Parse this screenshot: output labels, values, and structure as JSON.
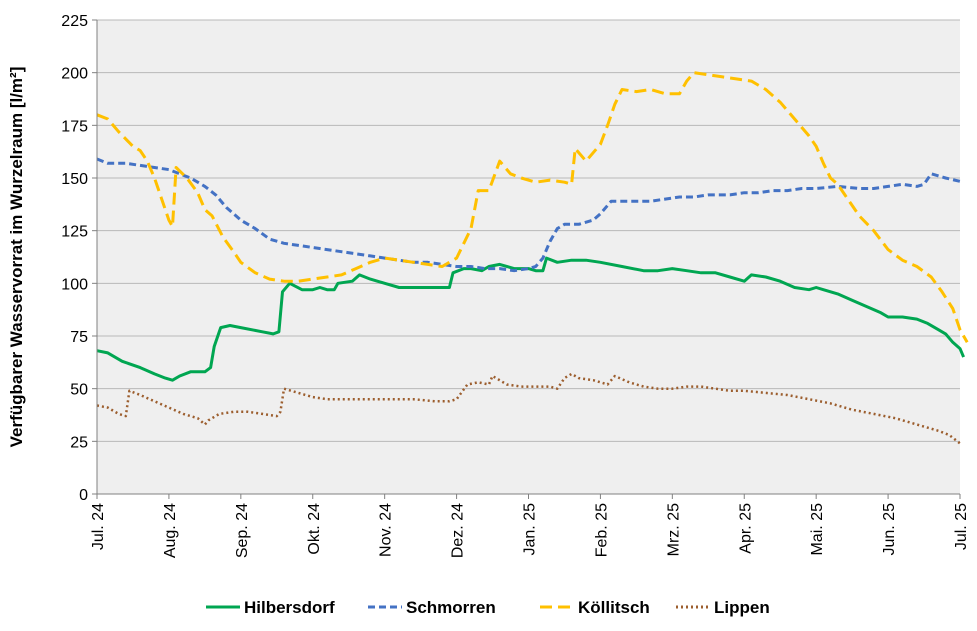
{
  "chart_data": {
    "type": "line",
    "ylabel": "Verfügbarer Wasservorrat im Wurzelraum [l/m²]",
    "ylim": [
      0,
      225
    ],
    "yticks": [
      0,
      25,
      50,
      75,
      100,
      125,
      150,
      175,
      200,
      225
    ],
    "xlim": [
      0,
      12
    ],
    "x_tick_labels": [
      "Jul. 24",
      "Aug. 24",
      "Sep. 24",
      "Okt. 24",
      "Nov. 24",
      "Dez. 24",
      "Jan. 25",
      "Feb. 25",
      "Mrz. 25",
      "Apr. 25",
      "Mai. 25",
      "Jun. 25",
      "Jul. 25"
    ],
    "grid": "horizontal",
    "legend": "bottom",
    "series": [
      {
        "name": "Hilbersdorf",
        "color": "#00a651",
        "dash": "solid",
        "points": [
          [
            0,
            68
          ],
          [
            0.15,
            67
          ],
          [
            0.35,
            63
          ],
          [
            0.6,
            60
          ],
          [
            0.8,
            57
          ],
          [
            0.95,
            55
          ],
          [
            1.05,
            54
          ],
          [
            1.15,
            56
          ],
          [
            1.3,
            58
          ],
          [
            1.5,
            58
          ],
          [
            1.58,
            60
          ],
          [
            1.63,
            70
          ],
          [
            1.72,
            79
          ],
          [
            1.85,
            80
          ],
          [
            2.0,
            79
          ],
          [
            2.3,
            77
          ],
          [
            2.45,
            76
          ],
          [
            2.53,
            77
          ],
          [
            2.58,
            96
          ],
          [
            2.68,
            100
          ],
          [
            2.85,
            97
          ],
          [
            3.0,
            97
          ],
          [
            3.1,
            98
          ],
          [
            3.2,
            97
          ],
          [
            3.3,
            97
          ],
          [
            3.35,
            100
          ],
          [
            3.55,
            101
          ],
          [
            3.65,
            104
          ],
          [
            3.8,
            102
          ],
          [
            4.0,
            100
          ],
          [
            4.2,
            98
          ],
          [
            4.4,
            98
          ],
          [
            4.6,
            98
          ],
          [
            4.8,
            98
          ],
          [
            4.9,
            98
          ],
          [
            4.95,
            105
          ],
          [
            5.1,
            107
          ],
          [
            5.2,
            107
          ],
          [
            5.35,
            106
          ],
          [
            5.45,
            108
          ],
          [
            5.6,
            109
          ],
          [
            5.8,
            107
          ],
          [
            6.0,
            107
          ],
          [
            6.1,
            106
          ],
          [
            6.2,
            106
          ],
          [
            6.25,
            112
          ],
          [
            6.4,
            110
          ],
          [
            6.6,
            111
          ],
          [
            6.8,
            111
          ],
          [
            7.0,
            110
          ],
          [
            7.3,
            108
          ],
          [
            7.6,
            106
          ],
          [
            7.8,
            106
          ],
          [
            8.0,
            107
          ],
          [
            8.2,
            106
          ],
          [
            8.4,
            105
          ],
          [
            8.6,
            105
          ],
          [
            8.8,
            103
          ],
          [
            9.0,
            101
          ],
          [
            9.1,
            104
          ],
          [
            9.3,
            103
          ],
          [
            9.5,
            101
          ],
          [
            9.7,
            98
          ],
          [
            9.9,
            97
          ],
          [
            10.0,
            98
          ],
          [
            10.1,
            97
          ],
          [
            10.3,
            95
          ],
          [
            10.5,
            92
          ],
          [
            10.7,
            89
          ],
          [
            10.9,
            86
          ],
          [
            11.0,
            84
          ],
          [
            11.2,
            84
          ],
          [
            11.4,
            83
          ],
          [
            11.55,
            81
          ],
          [
            11.7,
            78
          ],
          [
            11.8,
            76
          ],
          [
            11.9,
            72
          ],
          [
            12.0,
            69
          ],
          [
            12.05,
            65
          ]
        ]
      },
      {
        "name": "Schmorren",
        "color": "#4472c4",
        "dash": "dashed",
        "points": [
          [
            0,
            159
          ],
          [
            0.15,
            157
          ],
          [
            0.4,
            157
          ],
          [
            0.6,
            156
          ],
          [
            0.8,
            155
          ],
          [
            1.0,
            154
          ],
          [
            1.3,
            150
          ],
          [
            1.5,
            146
          ],
          [
            1.65,
            142
          ],
          [
            1.8,
            136
          ],
          [
            2.0,
            130
          ],
          [
            2.2,
            126
          ],
          [
            2.4,
            121
          ],
          [
            2.6,
            119
          ],
          [
            2.8,
            118
          ],
          [
            3.0,
            117
          ],
          [
            3.2,
            116
          ],
          [
            3.4,
            115
          ],
          [
            3.6,
            114
          ],
          [
            3.8,
            113
          ],
          [
            4.0,
            112
          ],
          [
            4.2,
            111
          ],
          [
            4.4,
            110
          ],
          [
            4.6,
            110
          ],
          [
            4.8,
            109
          ],
          [
            5.0,
            108
          ],
          [
            5.2,
            108
          ],
          [
            5.4,
            107
          ],
          [
            5.6,
            107
          ],
          [
            5.8,
            106
          ],
          [
            6.0,
            107
          ],
          [
            6.1,
            108
          ],
          [
            6.2,
            112
          ],
          [
            6.3,
            120
          ],
          [
            6.4,
            126
          ],
          [
            6.5,
            128
          ],
          [
            6.7,
            128
          ],
          [
            6.9,
            130
          ],
          [
            7.0,
            133
          ],
          [
            7.15,
            139
          ],
          [
            7.3,
            139
          ],
          [
            7.5,
            139
          ],
          [
            7.7,
            139
          ],
          [
            7.9,
            140
          ],
          [
            8.1,
            141
          ],
          [
            8.3,
            141
          ],
          [
            8.5,
            142
          ],
          [
            8.8,
            142
          ],
          [
            9.0,
            143
          ],
          [
            9.2,
            143
          ],
          [
            9.4,
            144
          ],
          [
            9.6,
            144
          ],
          [
            9.8,
            145
          ],
          [
            10.0,
            145
          ],
          [
            10.3,
            146
          ],
          [
            10.6,
            145
          ],
          [
            10.8,
            145
          ],
          [
            11.0,
            146
          ],
          [
            11.2,
            147
          ],
          [
            11.4,
            146
          ],
          [
            11.5,
            147
          ],
          [
            11.6,
            152
          ],
          [
            11.8,
            150
          ],
          [
            12.05,
            148
          ]
        ]
      },
      {
        "name": "Köllitsch",
        "color": "#ffc000",
        "dash": "long-dashed",
        "points": [
          [
            0,
            180
          ],
          [
            0.15,
            178
          ],
          [
            0.3,
            172
          ],
          [
            0.5,
            165
          ],
          [
            0.6,
            163
          ],
          [
            0.7,
            158
          ],
          [
            0.8,
            150
          ],
          [
            0.9,
            140
          ],
          [
            1.0,
            130
          ],
          [
            1.05,
            127
          ],
          [
            1.1,
            155
          ],
          [
            1.25,
            150
          ],
          [
            1.4,
            143
          ],
          [
            1.5,
            135
          ],
          [
            1.6,
            132
          ],
          [
            1.75,
            122
          ],
          [
            1.9,
            115
          ],
          [
            2.0,
            110
          ],
          [
            2.2,
            105
          ],
          [
            2.4,
            102
          ],
          [
            2.6,
            101
          ],
          [
            2.8,
            101
          ],
          [
            3.0,
            102
          ],
          [
            3.2,
            103
          ],
          [
            3.4,
            104
          ],
          [
            3.6,
            107
          ],
          [
            3.8,
            110
          ],
          [
            4.0,
            112
          ],
          [
            4.2,
            111
          ],
          [
            4.4,
            110
          ],
          [
            4.6,
            109
          ],
          [
            4.8,
            108
          ],
          [
            5.0,
            112
          ],
          [
            5.2,
            126
          ],
          [
            5.3,
            144
          ],
          [
            5.45,
            144
          ],
          [
            5.6,
            158
          ],
          [
            5.75,
            152
          ],
          [
            5.9,
            150
          ],
          [
            6.1,
            148
          ],
          [
            6.3,
            149
          ],
          [
            6.5,
            148
          ],
          [
            6.6,
            147
          ],
          [
            6.65,
            164
          ],
          [
            6.8,
            158
          ],
          [
            6.9,
            162
          ],
          [
            7.0,
            166
          ],
          [
            7.1,
            175
          ],
          [
            7.2,
            185
          ],
          [
            7.3,
            192
          ],
          [
            7.5,
            191
          ],
          [
            7.7,
            192
          ],
          [
            7.9,
            190
          ],
          [
            8.1,
            190
          ],
          [
            8.2,
            196
          ],
          [
            8.3,
            200
          ],
          [
            8.5,
            199
          ],
          [
            8.7,
            198
          ],
          [
            8.9,
            197
          ],
          [
            9.1,
            196
          ],
          [
            9.3,
            192
          ],
          [
            9.5,
            186
          ],
          [
            9.7,
            178
          ],
          [
            9.9,
            170
          ],
          [
            10.0,
            165
          ],
          [
            10.1,
            157
          ],
          [
            10.2,
            150
          ],
          [
            10.3,
            147
          ],
          [
            10.4,
            142
          ],
          [
            10.5,
            137
          ],
          [
            10.6,
            132
          ],
          [
            10.8,
            125
          ],
          [
            11.0,
            116
          ],
          [
            11.2,
            111
          ],
          [
            11.4,
            108
          ],
          [
            11.6,
            103
          ],
          [
            11.75,
            96
          ],
          [
            11.9,
            88
          ],
          [
            12.0,
            78
          ],
          [
            12.1,
            72
          ]
        ]
      },
      {
        "name": "Lippen",
        "color": "#9c5e2e",
        "dash": "dotted",
        "points": [
          [
            0,
            42
          ],
          [
            0.15,
            41
          ],
          [
            0.3,
            38
          ],
          [
            0.4,
            37
          ],
          [
            0.45,
            49
          ],
          [
            0.6,
            47
          ],
          [
            0.8,
            44
          ],
          [
            1.0,
            41
          ],
          [
            1.2,
            38
          ],
          [
            1.4,
            36
          ],
          [
            1.5,
            33
          ],
          [
            1.55,
            35
          ],
          [
            1.7,
            38
          ],
          [
            1.9,
            39
          ],
          [
            2.1,
            39
          ],
          [
            2.3,
            38
          ],
          [
            2.5,
            37
          ],
          [
            2.55,
            39
          ],
          [
            2.6,
            50
          ],
          [
            2.8,
            48
          ],
          [
            3.0,
            46
          ],
          [
            3.2,
            45
          ],
          [
            3.5,
            45
          ],
          [
            3.8,
            45
          ],
          [
            4.1,
            45
          ],
          [
            4.4,
            45
          ],
          [
            4.7,
            44
          ],
          [
            4.9,
            44
          ],
          [
            5.0,
            45
          ],
          [
            5.15,
            52
          ],
          [
            5.3,
            53
          ],
          [
            5.45,
            52
          ],
          [
            5.5,
            56
          ],
          [
            5.7,
            52
          ],
          [
            5.9,
            51
          ],
          [
            6.1,
            51
          ],
          [
            6.3,
            51
          ],
          [
            6.4,
            50
          ],
          [
            6.5,
            55
          ],
          [
            6.6,
            57
          ],
          [
            6.7,
            55
          ],
          [
            6.9,
            54
          ],
          [
            7.0,
            53
          ],
          [
            7.1,
            52
          ],
          [
            7.2,
            56
          ],
          [
            7.4,
            53
          ],
          [
            7.6,
            51
          ],
          [
            7.8,
            50
          ],
          [
            8.0,
            50
          ],
          [
            8.2,
            51
          ],
          [
            8.4,
            51
          ],
          [
            8.6,
            50
          ],
          [
            8.8,
            49
          ],
          [
            9.0,
            49
          ],
          [
            9.3,
            48
          ],
          [
            9.6,
            47
          ],
          [
            9.9,
            45
          ],
          [
            10.2,
            43
          ],
          [
            10.5,
            40
          ],
          [
            10.8,
            38
          ],
          [
            11.1,
            36
          ],
          [
            11.3,
            34
          ],
          [
            11.5,
            32
          ],
          [
            11.7,
            30
          ],
          [
            11.85,
            28
          ],
          [
            12.0,
            24
          ]
        ]
      }
    ]
  }
}
